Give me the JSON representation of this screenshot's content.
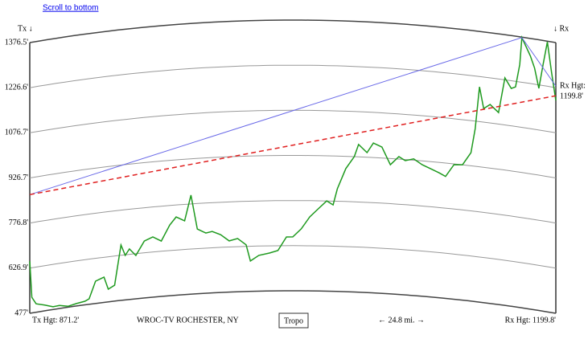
{
  "link": "Scroll to bottom",
  "chart_data": {
    "type": "line",
    "tx_label": "Tx ↓",
    "rx_label": "↓ Rx",
    "rx_height_title": "Rx Hgt:",
    "rx_height_value": "1199.8'",
    "xlim": [
      0,
      24.8
    ],
    "ylim": [
      477,
      1376.5
    ],
    "yticks": [
      {
        "value": 477,
        "label": "477'"
      },
      {
        "value": 626.9,
        "label": "626.9'"
      },
      {
        "value": 776.8,
        "label": "776.8'"
      },
      {
        "value": 926.7,
        "label": "926.7'"
      },
      {
        "value": 1076.7,
        "label": "1076.7'"
      },
      {
        "value": 1226.6,
        "label": "1226.6'"
      },
      {
        "value": 1376.5,
        "label": "1376.5'"
      }
    ],
    "x": [
      0,
      0.1,
      0.3,
      0.7,
      1.1,
      1.4,
      1.8,
      2.2,
      2.6,
      2.8,
      3.1,
      3.5,
      3.7,
      4.0,
      4.3,
      4.5,
      4.7,
      5.0,
      5.4,
      5.8,
      6.2,
      6.6,
      6.9,
      7.3,
      7.6,
      7.9,
      8.3,
      8.6,
      9.0,
      9.4,
      9.8,
      10.2,
      10.4,
      10.8,
      11.3,
      11.7,
      12.1,
      12.4,
      12.8,
      13.2,
      13.6,
      14.0,
      14.3,
      14.5,
      14.9,
      15.3,
      15.5,
      15.9,
      16.2,
      16.6,
      17.0,
      17.4,
      17.7,
      18.1,
      18.5,
      18.9,
      19.3,
      19.6,
      20.0,
      20.4,
      20.8,
      21.0,
      21.2,
      21.4,
      21.7,
      22.1,
      22.4,
      22.7,
      22.9,
      23.1,
      23.2,
      23.6,
      23.8,
      24.0,
      24.2,
      24.4,
      24.6,
      24.8
    ],
    "series": [
      {
        "color": "#1f9a1f",
        "values": [
          650,
          529,
          505,
          496,
          486,
          487,
          480,
          485,
          489,
          495,
          551,
          561,
          519,
          530,
          661,
          625,
          645,
          621,
          666,
          677,
          661,
          712,
          737,
          722,
          806,
          692,
          677,
          681,
          669,
          647,
          654,
          632,
          578,
          596,
          603,
          611,
          656,
          656,
          683,
          723,
          750,
          777,
          764,
          818,
          886,
          927,
          968,
          942,
          975,
          963,
          906,
          935,
          923,
          931,
          914,
          903,
          892,
          882,
          924,
          927,
          970,
          1052,
          1192,
          1122,
          1138,
          1115,
          1233,
          1201,
          1208,
          1285,
          1375,
          1318,
          1280,
          1215,
          1297,
          1374,
          1275,
          1184
        ]
      }
    ],
    "los_line": {
      "color": "#e02020",
      "x": [
        0,
        24.8
      ],
      "values": [
        871.2,
        1199.8
      ]
    },
    "tropo_line": {
      "color": "#6b6be8",
      "x": [
        0,
        23.2,
        24.8
      ],
      "values": [
        871.2,
        1375,
        1232
      ]
    },
    "footer": {
      "tx_height": "Tx Hgt: 871.2'",
      "station": "WROC-TV ROCHESTER, NY",
      "button": "Tropo",
      "distance": "← 24.8 mi. →",
      "rx_height": "Rx Hgt: 1199.8'"
    }
  }
}
